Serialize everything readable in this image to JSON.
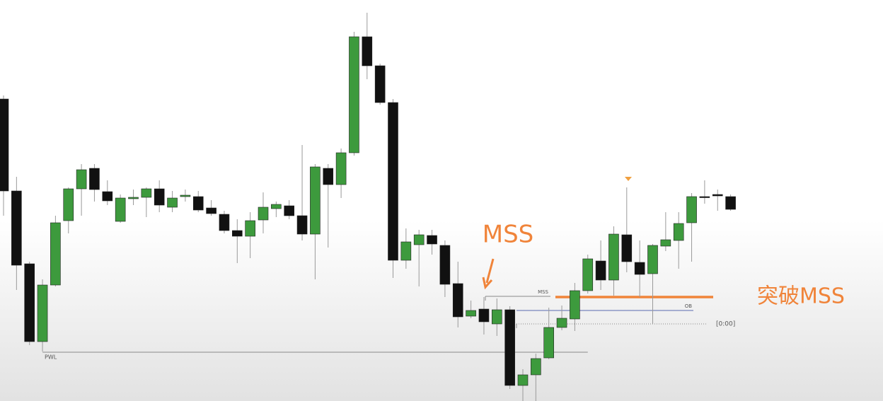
{
  "chart_data": {
    "type": "candlestick",
    "up_color": "#3d9a3d",
    "down_color": "#111111",
    "wick_color": "#9a9a9a",
    "ohlc": [
      [
        427,
        432,
        262,
        297
      ],
      [
        297,
        317,
        157,
        192
      ],
      [
        194,
        197,
        79,
        84
      ],
      [
        84,
        172,
        70,
        164
      ],
      [
        164,
        262,
        162,
        252
      ],
      [
        255,
        302,
        237,
        300
      ],
      [
        300,
        335,
        262,
        327
      ],
      [
        329,
        335,
        282,
        299
      ],
      [
        296,
        312,
        277,
        283
      ],
      [
        254,
        292,
        252,
        287
      ],
      [
        286,
        299,
        277,
        288
      ],
      [
        288,
        302,
        260,
        300
      ],
      [
        300,
        312,
        267,
        277
      ],
      [
        274,
        297,
        267,
        287
      ],
      [
        289,
        299,
        282,
        291
      ],
      [
        289,
        297,
        267,
        270
      ],
      [
        273,
        284,
        262,
        265
      ],
      [
        264,
        269,
        237,
        241
      ],
      [
        241,
        257,
        195,
        233
      ],
      [
        233,
        267,
        202,
        255
      ],
      [
        256,
        295,
        237,
        274
      ],
      [
        272,
        282,
        260,
        278
      ],
      [
        276,
        284,
        257,
        262
      ],
      [
        262,
        362,
        227,
        236
      ],
      [
        236,
        335,
        172,
        331
      ],
      [
        329,
        335,
        217,
        306
      ],
      [
        306,
        357,
        287,
        351
      ],
      [
        351,
        522,
        347,
        515
      ],
      [
        515,
        549,
        455,
        474
      ],
      [
        474,
        477,
        419,
        422
      ],
      [
        422,
        427,
        174,
        199
      ],
      [
        199,
        244,
        187,
        225
      ],
      [
        221,
        242,
        162,
        235
      ],
      [
        234,
        242,
        207,
        222
      ],
      [
        220,
        227,
        147,
        165
      ],
      [
        166,
        197,
        104,
        119
      ],
      [
        120,
        142,
        117,
        128
      ],
      [
        130,
        147,
        94,
        112
      ],
      [
        109,
        145,
        92,
        129
      ],
      [
        129,
        134,
        17,
        22
      ],
      [
        22,
        45,
        0,
        37
      ],
      [
        37,
        67,
        0,
        60
      ],
      [
        61,
        132,
        59,
        104
      ],
      [
        104,
        135,
        100,
        117
      ],
      [
        116,
        167,
        99,
        156
      ],
      [
        156,
        207,
        152,
        201
      ],
      [
        198,
        227,
        157,
        171
      ],
      [
        171,
        247,
        149,
        236
      ],
      [
        235,
        302,
        182,
        197
      ],
      [
        196,
        227,
        147,
        179
      ],
      [
        180,
        222,
        109,
        220
      ],
      [
        219,
        267,
        212,
        228
      ],
      [
        227,
        267,
        187,
        251
      ],
      [
        252,
        294,
        197,
        289
      ],
      [
        289,
        312,
        279,
        288
      ],
      [
        292,
        299,
        269,
        290
      ],
      [
        289,
        292,
        269,
        271
      ]
    ],
    "levels": [
      {
        "label": "PWL",
        "value": 69,
        "color": "#8a8a8a"
      },
      {
        "label": "MSS",
        "value": 148,
        "color": "#8a8a8a"
      },
      {
        "label": "OB",
        "value": 128,
        "color": "#5a6ab0"
      },
      {
        "label": "[0:00]",
        "value": 109,
        "color": "#8a8a8a"
      },
      {
        "label": "突破MSS",
        "value": 147,
        "color": "#f0843a"
      }
    ],
    "annotation": "MSS",
    "annotation_color": "#f0843a"
  }
}
